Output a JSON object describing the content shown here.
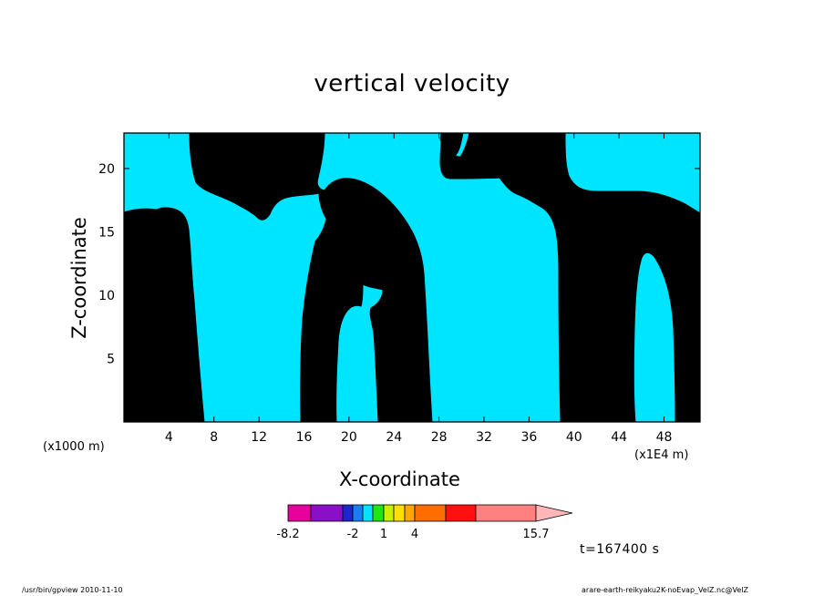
{
  "chart_data": {
    "type": "heatmap",
    "title": "vertical velocity",
    "xlabel": "X-coordinate",
    "ylabel": "Z-coordinate",
    "x_unit_left": "(x1000 m)",
    "x_unit_right": "(x1E4 m)",
    "x_ticks": [
      "4",
      "8",
      "12",
      "16",
      "20",
      "24",
      "28",
      "32",
      "36",
      "40",
      "44",
      "48"
    ],
    "y_ticks": [
      "5",
      "10",
      "15",
      "20"
    ],
    "xlim": [
      0,
      51.2
    ],
    "ylim": [
      0,
      22.8
    ],
    "colorbar": {
      "labels": [
        "-8.2",
        "-2",
        "1",
        "4",
        "15.7"
      ],
      "colors": [
        "#e8009a",
        "#8a10c8",
        "#1e24ce",
        "#1c7cf4",
        "#00e5ff",
        "#1ee614",
        "#c8f000",
        "#ffde00",
        "#ffa800",
        "#ff6c00",
        "#ff1010",
        "#ff8080",
        "#ffb6b6"
      ]
    },
    "field_colors": {
      "negative": "#00e5ff",
      "positive": "#00ff00"
    },
    "time": "t=167400 s"
  },
  "footer": {
    "left": "/usr/bin/gpview   2010-11-10",
    "right": "arare-earth-reikyaku2K-noEvap_VelZ.nc@VelZ"
  }
}
